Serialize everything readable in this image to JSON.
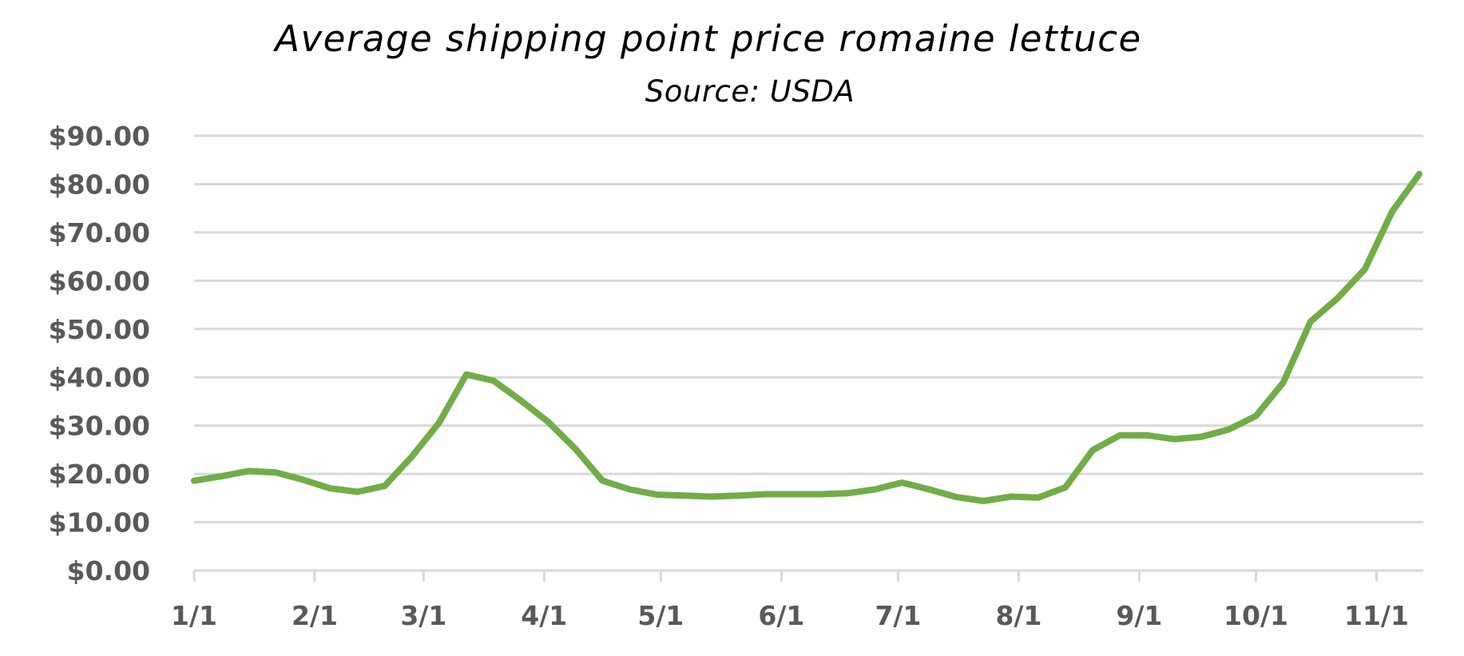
{
  "chart_data": {
    "type": "line",
    "title": "Average shipping point price romaine lettuce",
    "subtitle": "Source: USDA",
    "xlabel": "",
    "ylabel": "",
    "ylim": [
      0,
      90
    ],
    "y_tick_step": 10,
    "y_tick_labels": [
      "$0.00",
      "$10.00",
      "$20.00",
      "$30.00",
      "$40.00",
      "$50.00",
      "$60.00",
      "$70.00",
      "$80.00",
      "$90.00"
    ],
    "x_tick_labels": [
      "1/1",
      "2/1",
      "3/1",
      "4/1",
      "5/1",
      "6/1",
      "7/1",
      "8/1",
      "9/1",
      "10/1",
      "11/1"
    ],
    "x_tick_day_of_year": [
      0,
      31,
      59,
      90,
      120,
      151,
      181,
      212,
      243,
      273,
      304
    ],
    "x_range_days": [
      0,
      316
    ],
    "grid": true,
    "legend": null,
    "x_interval": "weekly",
    "series": [
      {
        "name": "Average shipping point price",
        "color": "#70AD47",
        "x_day_of_year": [
          0,
          7,
          14,
          21,
          28,
          35,
          42,
          49,
          56,
          63,
          70,
          77,
          84,
          91,
          98,
          105,
          112,
          119,
          126,
          133,
          140,
          147,
          154,
          161,
          168,
          175,
          182,
          189,
          196,
          203,
          210,
          217,
          224,
          231,
          238,
          245,
          252,
          259,
          266,
          273,
          280,
          287,
          294,
          301,
          308,
          315
        ],
        "values": [
          18.6,
          19.5,
          20.6,
          20.3,
          18.8,
          17.0,
          16.3,
          17.5,
          23.6,
          30.6,
          40.6,
          39.3,
          35.2,
          30.8,
          25.2,
          18.6,
          16.8,
          15.7,
          15.5,
          15.3,
          15.5,
          15.8,
          15.8,
          15.8,
          16.0,
          16.8,
          18.2,
          16.8,
          15.2,
          14.4,
          15.3,
          15.1,
          17.2,
          24.9,
          28.0,
          28.0,
          27.2,
          27.7,
          29.2,
          32.0,
          38.9,
          51.5,
          56.4,
          62.4,
          74.3,
          82.1
        ]
      }
    ]
  }
}
